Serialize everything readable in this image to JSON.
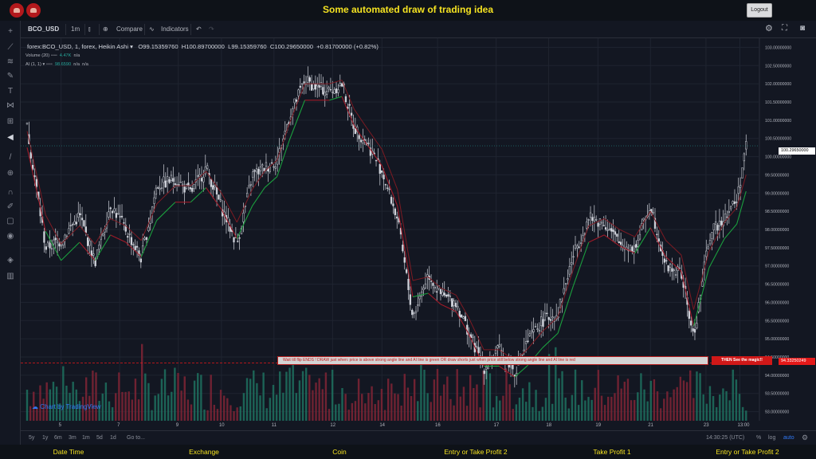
{
  "header": {
    "title": "Some automated draw of trading idea",
    "logout_label": "Logout"
  },
  "toolbar": {
    "symbol": "BCO_USD",
    "interval": "1m",
    "compare_label": "Compare",
    "indicators_label": "Indicators"
  },
  "legend": {
    "symbol_line": "forex:BCO_USD, 1, forex, Heikin Ashi",
    "open": "O99.15359760",
    "high": "H100.89700000",
    "low": "L99.15359760",
    "close": "C100.29650000",
    "change": "+0.81700000 (+0.82%)",
    "volume_label": "Volume (20)",
    "volume_value": "4.47K",
    "volume_na": "n/a",
    "ai_label": "AI (1, 1)",
    "ai_value": "98.6590",
    "ai_na1": "n/a",
    "ai_na2": "n/a"
  },
  "annotations": {
    "banner_text": "Wait till flip ENDS  !     DRAW just when:  price is above strong angle line and AI line is green          OR          draw shorts just when price still below strong angle line and AI line is red",
    "magic_text": "THEN See the magic!!",
    "line_price": "94.33250249",
    "last_price": "100.29650000"
  },
  "watermark": "Chart by TradingView",
  "bottom": {
    "ranges": [
      "5y",
      "1y",
      "6m",
      "3m",
      "1m",
      "5d",
      "1d"
    ],
    "goto_label": "Go to...",
    "clock": "14:30:25 (UTC)",
    "pct_label": "%",
    "log_label": "log",
    "auto_label": "auto"
  },
  "footer": {
    "columns": [
      "Date Time",
      "Exchange",
      "Coin",
      "Entry or Take Profit 2",
      "Take Profit 1",
      "Entry or Take Profit 2"
    ]
  },
  "chart_data": {
    "type": "candlestick",
    "style": "Heikin Ashi",
    "symbol": "forex:BCO_USD",
    "y_ticks": [
      "103.00000000",
      "102.50000000",
      "102.00000000",
      "101.50000000",
      "101.00000000",
      "100.50000000",
      "100.00000000",
      "99.50000000",
      "99.00000000",
      "98.50000000",
      "98.00000000",
      "97.50000000",
      "97.00000000",
      "96.50000000",
      "96.00000000",
      "95.50000000",
      "95.00000000",
      "94.50000000",
      "94.00000000",
      "93.50000000",
      "93.00000000"
    ],
    "x_ticks": [
      "5",
      "7",
      "9",
      "10",
      "11",
      "12",
      "14",
      "16",
      "17",
      "18",
      "19",
      "21",
      "23",
      "13:00"
    ],
    "ylim": [
      92.75,
      103.25
    ],
    "x_tick_positions": [
      1.1,
      3.0,
      4.9,
      6.3,
      8.0,
      9.9,
      11.5,
      13.3,
      15.2,
      16.9,
      18.5,
      20.2,
      22.0,
      23.1
    ],
    "xlim": [
      0,
      23.5
    ],
    "price_path_x": [
      0,
      0.6,
      1.1,
      1.7,
      2.2,
      2.7,
      3.2,
      3.7,
      4.2,
      4.8,
      5.3,
      5.8,
      6.3,
      6.8,
      7.3,
      7.7,
      8.1,
      8.5,
      9.0,
      9.4,
      9.8,
      10.2,
      10.6,
      11.0,
      11.5,
      12.0,
      12.5,
      13.0,
      13.4,
      13.9,
      14.3,
      14.8,
      15.3,
      15.8,
      16.2,
      16.7,
      17.2,
      17.7,
      18.2,
      18.7,
      19.2,
      19.7,
      20.2,
      20.7,
      21.2,
      21.6,
      22.1,
      22.6,
      23.0,
      23.3
    ],
    "price_path_y": [
      100.8,
      97.5,
      97.7,
      98.4,
      97.1,
      98.7,
      98.0,
      97.2,
      99.2,
      99.4,
      99.0,
      99.7,
      98.6,
      97.6,
      99.5,
      99.7,
      99.9,
      101.1,
      102.1,
      101.9,
      101.8,
      102.0,
      100.8,
      100.4,
      99.6,
      98.3,
      95.6,
      96.8,
      96.2,
      96.0,
      95.2,
      94.2,
      94.7,
      94.1,
      94.9,
      95.5,
      95.7,
      97.3,
      98.3,
      98.2,
      97.6,
      97.5,
      98.7,
      97.0,
      96.8,
      95.0,
      97.8,
      98.4,
      98.8,
      100.3
    ],
    "ai_line": [
      100.5,
      98.2,
      97.4,
      97.9,
      97.4,
      98.1,
      97.9,
      97.5,
      98.5,
      99.0,
      99.0,
      99.4,
      98.8,
      98.0,
      98.9,
      99.4,
      99.7,
      100.7,
      101.8,
      101.8,
      101.8,
      101.9,
      101.1,
      100.6,
      100.0,
      98.9,
      96.4,
      96.5,
      96.2,
      96.0,
      95.4,
      94.5,
      94.5,
      94.2,
      94.5,
      95.0,
      95.4,
      96.7,
      97.9,
      98.1,
      97.8,
      97.6,
      98.3,
      97.5,
      97.1,
      95.6,
      97.2,
      98.0,
      98.4,
      99.3
    ],
    "volume_note": "volume histogram in red/green bars"
  }
}
